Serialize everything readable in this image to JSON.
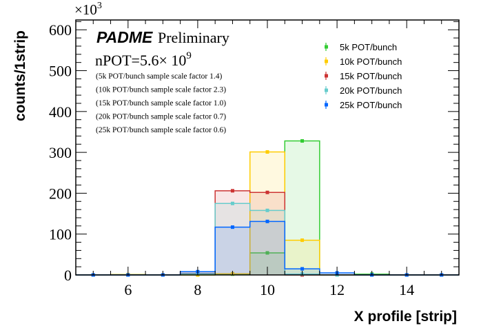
{
  "chart_data": {
    "type": "bar",
    "style": "overlaid step histograms",
    "xlabel": "X profile [strip]",
    "ylabel": "counts/1strip",
    "y_multiplier": "×10",
    "y_multiplier_exp": "3",
    "xlim": [
      4.5,
      15.5
    ],
    "ylim": [
      0,
      624
    ],
    "xticks": [
      "6",
      "8",
      "10",
      "12",
      "14"
    ],
    "yticks": [
      "0",
      "100",
      "200",
      "300",
      "400",
      "500",
      "600"
    ],
    "bins": [
      5,
      6,
      7,
      8,
      9,
      10,
      11,
      12,
      13,
      14,
      15
    ],
    "series": [
      {
        "name": "5k POT/bunch",
        "color": "#33cc33",
        "values": [
          0,
          0,
          0,
          0,
          2,
          54,
          328,
          0,
          2,
          0,
          0
        ]
      },
      {
        "name": "10k POT/bunch",
        "color": "#ffcc00",
        "values": [
          0,
          1,
          0,
          0,
          3,
          301,
          85,
          0,
          0,
          0,
          0
        ]
      },
      {
        "name": "15k POT/bunch",
        "color": "#cc3333",
        "values": [
          0,
          0,
          0,
          4,
          206,
          202,
          0,
          0,
          0,
          0,
          0
        ]
      },
      {
        "name": "20k POT/bunch",
        "color": "#66cccc",
        "values": [
          0,
          0,
          0,
          3,
          175,
          158,
          2,
          0,
          0,
          0,
          0
        ]
      },
      {
        "name": "25k POT/bunch",
        "color": "#0066ff",
        "values": [
          0,
          0,
          0,
          8,
          117,
          131,
          15,
          5,
          0,
          0,
          0
        ]
      }
    ],
    "legend": "top-right",
    "annotations": {
      "experiment": "PADME",
      "status": "Preliminary",
      "npot": "nPOT=5.6× 10",
      "npot_exp": "9",
      "scale_notes": [
        "(5k POT/bunch sample scale factor 1.4)",
        "(10k POT/bunch sample scale factor 2.3)",
        "(15k POT/bunch sample scale factor 1.0)",
        "(20k POT/bunch sample scale factor 0.7)",
        "(25k POT/bunch sample scale factor 0.6)"
      ]
    }
  }
}
